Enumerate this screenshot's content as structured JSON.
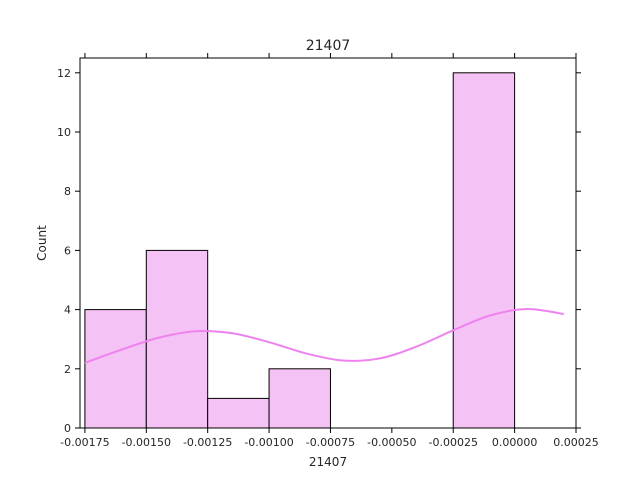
{
  "chart_data": {
    "type": "bar",
    "title": "21407",
    "xlabel": "21407",
    "ylabel": "Count",
    "xlim": [
      -0.00177,
      0.00025
    ],
    "ylim": [
      0,
      12.5
    ],
    "xticks": [
      -0.00175,
      -0.0015,
      -0.00125,
      -0.001,
      -0.00075,
      -0.0005,
      -0.00025,
      0.0,
      0.00025
    ],
    "xtick_labels": [
      "-0.00175",
      "-0.00150",
      "-0.00125",
      "-0.00100",
      "-0.00075",
      "-0.00050",
      "-0.00025",
      "0.00000",
      "0.00025"
    ],
    "yticks": [
      0,
      2,
      4,
      6,
      8,
      10,
      12
    ],
    "ytick_labels": [
      "0",
      "2",
      "4",
      "6",
      "8",
      "10",
      "12"
    ],
    "bins": [
      {
        "x0": -0.00175,
        "x1": -0.0015,
        "count": 4
      },
      {
        "x0": -0.0015,
        "x1": -0.00125,
        "count": 6
      },
      {
        "x0": -0.00125,
        "x1": -0.001,
        "count": 1
      },
      {
        "x0": -0.001,
        "x1": -0.00075,
        "count": 2
      },
      {
        "x0": -0.00075,
        "x1": -0.0005,
        "count": 0
      },
      {
        "x0": -0.0005,
        "x1": -0.00025,
        "count": 0
      },
      {
        "x0": -0.00025,
        "x1": 0.0,
        "count": 12
      }
    ],
    "kde": {
      "x": [
        -0.00175,
        -0.0016,
        -0.00145,
        -0.0013,
        -0.00115,
        -0.001,
        -0.00085,
        -0.0007,
        -0.00055,
        -0.0004,
        -0.00025,
        -0.0001,
        5e-05,
        0.0002
      ],
      "y": [
        2.2,
        2.65,
        3.05,
        3.27,
        3.2,
        2.9,
        2.52,
        2.28,
        2.35,
        2.75,
        3.3,
        3.8,
        4.02,
        3.85
      ]
    },
    "colors": {
      "bar_fill": "#f4c2f4",
      "bar_edge": "#000000",
      "kde_line": "#ee82ee"
    },
    "grid": false
  }
}
